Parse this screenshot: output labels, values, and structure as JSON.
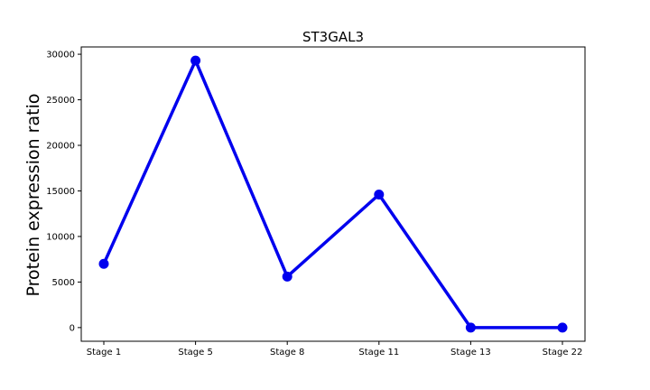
{
  "chart_data": {
    "type": "line",
    "title": "ST3GAL3",
    "xlabel": "",
    "ylabel": "Protein expression ratio",
    "categories": [
      "Stage 1",
      "Stage 5",
      "Stage 8",
      "Stage 11",
      "Stage 13",
      "Stage 22"
    ],
    "series": [
      {
        "values": [
          7000,
          29300,
          5600,
          14600,
          0,
          0
        ],
        "color": "#0000ee"
      }
    ],
    "ylim": [
      -1500,
      30800
    ],
    "yticks": [
      0,
      5000,
      10000,
      15000,
      20000,
      25000,
      30000
    ],
    "yticklabels": [
      "0",
      "5000",
      "10000",
      "15000",
      "20000",
      "25000",
      "30000"
    ],
    "grid": false,
    "legend": "none"
  }
}
